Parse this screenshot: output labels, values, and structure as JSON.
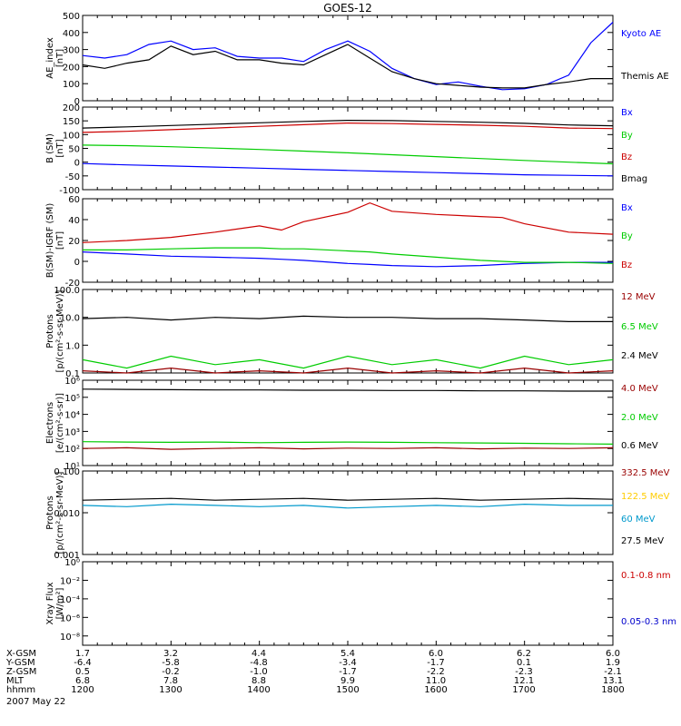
{
  "title": "GOES-12",
  "footer": {
    "rows": [
      {
        "label": "X-GSM",
        "values": [
          "1.7",
          "3.2",
          "4.4",
          "5.4",
          "6.0",
          "6.2",
          "6.0"
        ]
      },
      {
        "label": "Y-GSM",
        "values": [
          "-6.4",
          "-5.8",
          "-4.8",
          "-3.4",
          "-1.7",
          "0.1",
          "1.9"
        ]
      },
      {
        "label": "Z-GSM",
        "values": [
          "0.5",
          "-0.2",
          "-1.0",
          "-1.7",
          "-2.2",
          "-2.3",
          "-2.1"
        ]
      },
      {
        "label": "MLT",
        "values": [
          "6.8",
          "7.8",
          "8.8",
          "9.9",
          "11.0",
          "12.1",
          "13.1"
        ]
      },
      {
        "label": "hhmm",
        "values": [
          "1200",
          "1300",
          "1400",
          "1500",
          "1600",
          "1700",
          "1800"
        ]
      }
    ],
    "date": "2007 May 22"
  },
  "chart_data": [
    {
      "type": "line",
      "ylabel": [
        "AE_index",
        "[nT]"
      ],
      "ylim": [
        0,
        500
      ],
      "yticks": [
        {
          "v": 0,
          "t": "0"
        },
        {
          "v": 100,
          "t": "100"
        },
        {
          "v": 200,
          "t": "200"
        },
        {
          "v": 300,
          "t": "300"
        },
        {
          "v": 400,
          "t": "400"
        },
        {
          "v": 500,
          "t": "500"
        }
      ],
      "x_hours": [
        12,
        12.25,
        12.5,
        12.75,
        13,
        13.25,
        13.5,
        13.75,
        14,
        14.25,
        14.5,
        14.75,
        15,
        15.25,
        15.5,
        15.75,
        16,
        16.25,
        16.5,
        16.75,
        17,
        17.25,
        17.5,
        17.75,
        18
      ],
      "series": [
        {
          "name": "Kyoto AE",
          "color": "#0000ff",
          "values": [
            265,
            250,
            270,
            330,
            350,
            300,
            310,
            260,
            250,
            250,
            230,
            300,
            350,
            290,
            190,
            130,
            95,
            110,
            85,
            65,
            70,
            95,
            150,
            340,
            460
          ]
        },
        {
          "name": "Themis AE",
          "color": "#000000",
          "values": [
            210,
            190,
            220,
            240,
            320,
            270,
            290,
            240,
            240,
            220,
            210,
            270,
            330,
            250,
            170,
            130,
            100,
            90,
            80,
            75,
            75,
            95,
            110,
            130,
            130
          ]
        }
      ]
    },
    {
      "type": "line",
      "ylabel": [
        "B (SM)",
        "[nT]"
      ],
      "ylim": [
        -100,
        200
      ],
      "yticks": [
        {
          "v": -100,
          "t": "-100"
        },
        {
          "v": -50,
          "t": "-50"
        },
        {
          "v": 0,
          "t": "0"
        },
        {
          "v": 50,
          "t": "50"
        },
        {
          "v": 100,
          "t": "100"
        },
        {
          "v": 150,
          "t": "150"
        },
        {
          "v": 200,
          "t": "200"
        }
      ],
      "x_hours": [
        12,
        12.5,
        13,
        13.5,
        14,
        14.5,
        15,
        15.5,
        16,
        16.5,
        17,
        17.5,
        18
      ],
      "series": [
        {
          "name": "Bx",
          "color": "#0000ff",
          "values": [
            -5,
            -10,
            -14,
            -18,
            -22,
            -26,
            -30,
            -34,
            -38,
            -42,
            -46,
            -48,
            -50
          ]
        },
        {
          "name": "By",
          "color": "#00cc00",
          "values": [
            62,
            60,
            56,
            51,
            46,
            40,
            34,
            27,
            20,
            13,
            6,
            0,
            -6
          ]
        },
        {
          "name": "Bz",
          "color": "#cc0000",
          "values": [
            108,
            112,
            118,
            124,
            130,
            136,
            142,
            140,
            137,
            134,
            130,
            124,
            122
          ]
        },
        {
          "name": "Bmag",
          "color": "#000000",
          "values": [
            124,
            128,
            133,
            138,
            143,
            148,
            152,
            151,
            148,
            145,
            141,
            135,
            132
          ]
        }
      ]
    },
    {
      "type": "line",
      "ylabel": [
        "B(SM)-IGRF (SM)",
        "[nT]"
      ],
      "ylim": [
        -20,
        60
      ],
      "yticks": [
        {
          "v": -20,
          "t": "-20"
        },
        {
          "v": 0,
          "t": "0"
        },
        {
          "v": 20,
          "t": "20"
        },
        {
          "v": 40,
          "t": "40"
        },
        {
          "v": 60,
          "t": "60"
        }
      ],
      "x_hours": [
        12,
        12.5,
        13,
        13.5,
        14,
        14.25,
        14.5,
        15,
        15.25,
        15.5,
        16,
        16.5,
        16.75,
        17,
        17.5,
        18
      ],
      "series": [
        {
          "name": "Bx",
          "color": "#0000ff",
          "values": [
            9,
            7,
            5,
            4,
            3,
            2,
            1,
            -2,
            -3,
            -4,
            -5,
            -4,
            -3,
            -2,
            -1,
            -1
          ]
        },
        {
          "name": "By",
          "color": "#00cc00",
          "values": [
            11,
            11,
            12,
            13,
            13,
            12,
            12,
            10,
            9,
            7,
            4,
            1,
            0,
            -1,
            -1,
            -2
          ]
        },
        {
          "name": "Bz",
          "color": "#cc0000",
          "values": [
            18,
            20,
            23,
            28,
            34,
            30,
            38,
            47,
            56,
            48,
            45,
            43,
            42,
            36,
            28,
            26
          ]
        }
      ]
    },
    {
      "type": "line",
      "yscale": "log",
      "ylabel": [
        "Protons",
        "[p/(cm²-s-sr-MeV)]"
      ],
      "ylim": [
        0.1,
        100
      ],
      "yticks": [
        {
          "v": 0.1,
          "t": "0.1"
        },
        {
          "v": 1,
          "t": "1.0"
        },
        {
          "v": 10,
          "t": "10.0"
        },
        {
          "v": 100,
          "t": "100.0"
        }
      ],
      "x_hours": [
        12,
        12.5,
        13,
        13.5,
        14,
        14.5,
        15,
        15.5,
        16,
        16.5,
        17,
        17.5,
        18
      ],
      "series": [
        {
          "name": "12 MeV",
          "color": "#990000",
          "values": [
            0.12,
            0.1,
            0.15,
            0.1,
            0.12,
            0.1,
            0.15,
            0.1,
            0.12,
            0.1,
            0.15,
            0.1,
            0.12
          ]
        },
        {
          "name": "6.5 MeV",
          "color": "#00cc00",
          "values": [
            0.3,
            0.15,
            0.4,
            0.2,
            0.3,
            0.15,
            0.4,
            0.2,
            0.3,
            0.15,
            0.4,
            0.2,
            0.3
          ]
        },
        {
          "name": "2.4 MeV",
          "color": "#000000",
          "values": [
            9,
            10,
            8,
            10,
            9,
            11,
            10,
            10,
            9,
            9,
            8,
            7,
            7
          ]
        }
      ]
    },
    {
      "type": "line",
      "yscale": "log",
      "ylabel": [
        "Electrons",
        "[e/(cm²-s-sr)]"
      ],
      "ylim": [
        10,
        1000000
      ],
      "yticks": [
        {
          "v": 10,
          "t": "10¹"
        },
        {
          "v": 100,
          "t": "10²"
        },
        {
          "v": 1000,
          "t": "10³"
        },
        {
          "v": 10000,
          "t": "10⁴"
        },
        {
          "v": 100000,
          "t": "10⁵"
        },
        {
          "v": 1000000,
          "t": "10⁶"
        }
      ],
      "x_hours": [
        12,
        12.5,
        13,
        13.5,
        14,
        14.5,
        15,
        15.5,
        16,
        16.5,
        17,
        17.5,
        18
      ],
      "series": [
        {
          "name": "4.0 MeV",
          "color": "#990000",
          "values": [
            100,
            110,
            90,
            100,
            110,
            95,
            105,
            100,
            110,
            95,
            105,
            100,
            110
          ]
        },
        {
          "name": "2.0 MeV",
          "color": "#00cc00",
          "values": [
            250,
            240,
            230,
            240,
            220,
            230,
            240,
            230,
            220,
            210,
            200,
            190,
            180
          ]
        },
        {
          "name": "0.6 MeV",
          "color": "#000000",
          "values": [
            300000,
            290000,
            280000,
            270000,
            270000,
            260000,
            260000,
            250000,
            250000,
            240000,
            240000,
            230000,
            230000
          ]
        }
      ]
    },
    {
      "type": "line",
      "yscale": "log",
      "ylabel": [
        "Protons",
        "[p/(cm²-s-sr-MeV)]"
      ],
      "ylim": [
        0.001,
        0.1
      ],
      "yticks": [
        {
          "v": 0.001,
          "t": "0.001"
        },
        {
          "v": 0.01,
          "t": "0.010"
        },
        {
          "v": 0.1,
          "t": "0.100"
        }
      ],
      "x_hours": [
        12,
        12.5,
        13,
        13.5,
        14,
        14.5,
        15,
        15.5,
        16,
        16.5,
        17,
        17.5,
        18
      ],
      "series": [
        {
          "name": "332.5 MeV",
          "color": "#990000",
          "values": []
        },
        {
          "name": "122.5 MeV",
          "color": "#ffcc00",
          "values": []
        },
        {
          "name": "60 MeV",
          "color": "#0099cc",
          "values": [
            0.015,
            0.014,
            0.016,
            0.015,
            0.014,
            0.015,
            0.013,
            0.014,
            0.015,
            0.014,
            0.016,
            0.015,
            0.015
          ]
        },
        {
          "name": "27.5 MeV",
          "color": "#000000",
          "values": [
            0.02,
            0.021,
            0.022,
            0.02,
            0.021,
            0.022,
            0.02,
            0.021,
            0.022,
            0.02,
            0.021,
            0.022,
            0.021
          ]
        }
      ]
    },
    {
      "type": "line",
      "yscale": "log",
      "ylabel": [
        "Xray Flux",
        "[W/m²]"
      ],
      "ylim": [
        1e-09,
        1
      ],
      "yticks": [
        {
          "v": 1e-08,
          "t": "10⁻⁸"
        },
        {
          "v": 1e-06,
          "t": "10⁻⁶"
        },
        {
          "v": 0.0001,
          "t": "10⁻⁴"
        },
        {
          "v": 0.01,
          "t": "10⁻²"
        },
        {
          "v": 1,
          "t": "10⁰"
        }
      ],
      "x_hours": [
        12,
        18
      ],
      "series": [
        {
          "name": "0.1-0.8 nm",
          "color": "#cc0000",
          "values": []
        },
        {
          "name": "0.05-0.3 nm",
          "color": "#0000cc",
          "values": []
        }
      ]
    }
  ]
}
